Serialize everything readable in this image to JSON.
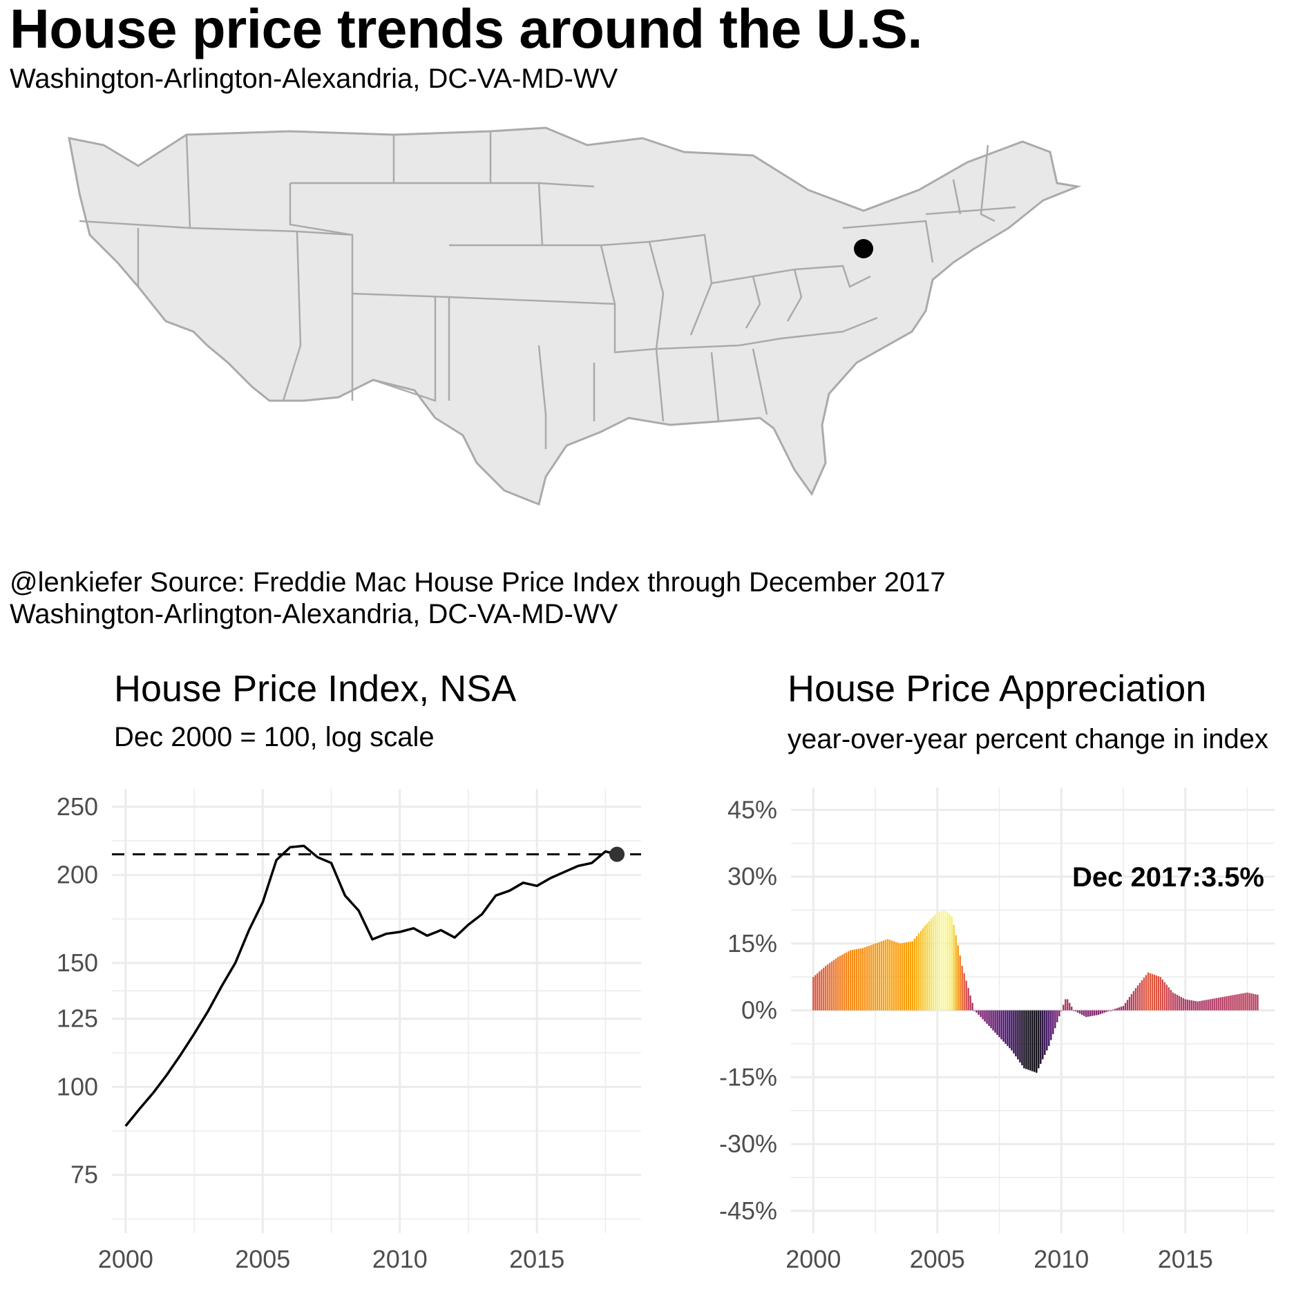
{
  "header": {
    "title": "House price trends around the U.S.",
    "subtitle": "Washington-Arlington-Alexandria, DC-VA-MD-WV"
  },
  "map": {
    "highlighted_metro": "Washington-Arlington-Alexandria, DC-VA-MD-WV",
    "fill_color": "#e8e8e8",
    "border_color": "#aaaaaa",
    "marker_color": "#000000"
  },
  "caption": {
    "line1": "@lenkiefer Source: Freddie Mac House Price Index through December 2017",
    "line2": "Washington-Arlington-Alexandria, DC-VA-MD-WV"
  },
  "colors": {
    "grid": "#ebebeb",
    "line": "#000000",
    "tick_text": "#4d4d4d"
  },
  "chart_data": [
    {
      "type": "line",
      "title": "House Price Index, NSA",
      "subtitle": "Dec 2000 = 100, log scale",
      "y_scale": "log",
      "ylim": [
        62,
        265
      ],
      "xlim": [
        1999.5,
        2018.8
      ],
      "y_ticks": [
        75,
        100,
        125,
        150,
        200,
        250
      ],
      "x_ticks": [
        2000,
        2005,
        2010,
        2015
      ],
      "reference_line": {
        "value": 214,
        "style": "dashed"
      },
      "end_point": {
        "x": 2017.92,
        "y": 214
      },
      "x": [
        2000.0,
        2000.5,
        2001.0,
        2001.5,
        2002.0,
        2002.5,
        2003.0,
        2003.5,
        2004.0,
        2004.5,
        2005.0,
        2005.5,
        2006.0,
        2006.5,
        2007.0,
        2007.5,
        2008.0,
        2008.5,
        2009.0,
        2009.5,
        2010.0,
        2010.5,
        2011.0,
        2011.5,
        2012.0,
        2012.5,
        2013.0,
        2013.5,
        2014.0,
        2014.5,
        2015.0,
        2015.5,
        2016.0,
        2016.5,
        2017.0,
        2017.5,
        2017.92
      ],
      "values": [
        88,
        93,
        98,
        104,
        111,
        119,
        128,
        139,
        150,
        167,
        183,
        210,
        219,
        220,
        212,
        208,
        187,
        178,
        162,
        165,
        166,
        168,
        164,
        167,
        163,
        170,
        176,
        187,
        190,
        195,
        193,
        198,
        202,
        206,
        208,
        216,
        214
      ]
    },
    {
      "type": "bar",
      "title": "House Price Appreciation",
      "subtitle": "year-over-year percent change in index",
      "ylim": [
        -50,
        50
      ],
      "xlim": [
        1999.1,
        2018.6
      ],
      "y_ticks": [
        -45,
        -30,
        -15,
        0,
        15,
        30,
        45
      ],
      "y_tick_labels": [
        "-45%",
        "-30%",
        "-15%",
        "0%",
        "15%",
        "30%",
        "45%"
      ],
      "x_ticks": [
        2000,
        2005,
        2010,
        2015
      ],
      "annotation": "Dec 2017:3.5%",
      "x": [
        2000.0,
        2000.5,
        2001.0,
        2001.5,
        2002.0,
        2002.5,
        2003.0,
        2003.5,
        2004.0,
        2004.5,
        2005.0,
        2005.3,
        2005.6,
        2006.0,
        2006.5,
        2007.0,
        2007.5,
        2008.0,
        2008.5,
        2009.0,
        2009.5,
        2010.0,
        2010.2,
        2010.5,
        2011.0,
        2011.5,
        2012.0,
        2012.5,
        2013.0,
        2013.5,
        2014.0,
        2014.5,
        2015.0,
        2015.5,
        2016.0,
        2016.5,
        2017.0,
        2017.5,
        2017.92
      ],
      "values": [
        7.5,
        10,
        12,
        13.5,
        14,
        15,
        16,
        15,
        15.5,
        19,
        22,
        22.5,
        21,
        10,
        0,
        -3,
        -6,
        -9,
        -13,
        -14,
        -8,
        0,
        3,
        0,
        -1.5,
        -1,
        0,
        1,
        5,
        8.5,
        7.5,
        4,
        2.5,
        2,
        2.5,
        3,
        3.5,
        4,
        3.5
      ]
    }
  ]
}
